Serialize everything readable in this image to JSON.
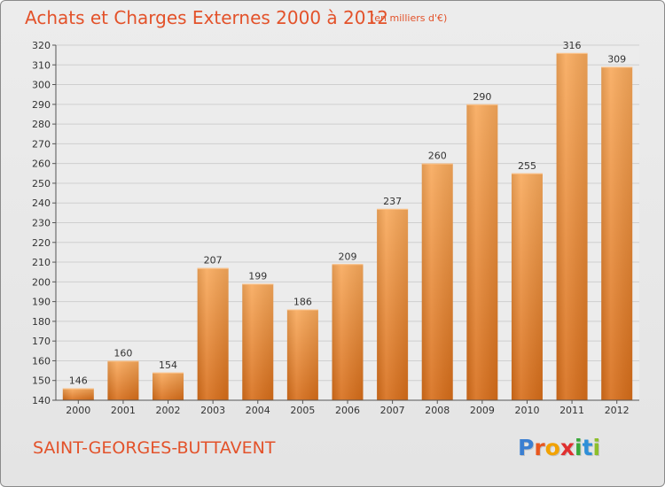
{
  "title": "Achats et Charges Externes 2000 à 2012",
  "subtitle": "(en milliers d'€)",
  "city": "SAINT-GEORGES-BUTTAVENT",
  "logo": {
    "text": "Proxiti",
    "letters": [
      "P",
      "r",
      "o",
      "x",
      "i",
      "t",
      "i"
    ],
    "colors": [
      "#3b7fd1",
      "#e8571e",
      "#f2a200",
      "#e03030",
      "#39a83a",
      "#2f8fd8",
      "#8dbf2a"
    ]
  },
  "colors": {
    "accent": "#e3522a",
    "bar_light": "#f8a95b",
    "bar_dark": "#d76d19",
    "grid": "#cfcfcf",
    "axis": "#555555"
  },
  "chart_data": {
    "type": "bar",
    "categories": [
      "2000",
      "2001",
      "2002",
      "2003",
      "2004",
      "2005",
      "2006",
      "2007",
      "2008",
      "2009",
      "2010",
      "2011",
      "2012"
    ],
    "values": [
      146,
      160,
      154,
      207,
      199,
      186,
      209,
      237,
      260,
      290,
      255,
      316,
      309
    ],
    "data_labels": [
      "146",
      "160",
      "154",
      "207",
      "199",
      "186",
      "209",
      "237",
      "260",
      "290",
      "255",
      "316",
      "309"
    ],
    "ylim": [
      140,
      320
    ],
    "yticks": [
      140,
      150,
      160,
      170,
      180,
      190,
      200,
      210,
      220,
      230,
      240,
      250,
      260,
      270,
      280,
      290,
      300,
      310,
      320
    ],
    "ytick_labels": [
      "140",
      "150",
      "160",
      "170",
      "180",
      "190",
      "200",
      "210",
      "220",
      "230",
      "240",
      "250",
      "260",
      "270",
      "280",
      "290",
      "300",
      "310",
      "320"
    ],
    "grid": true
  }
}
